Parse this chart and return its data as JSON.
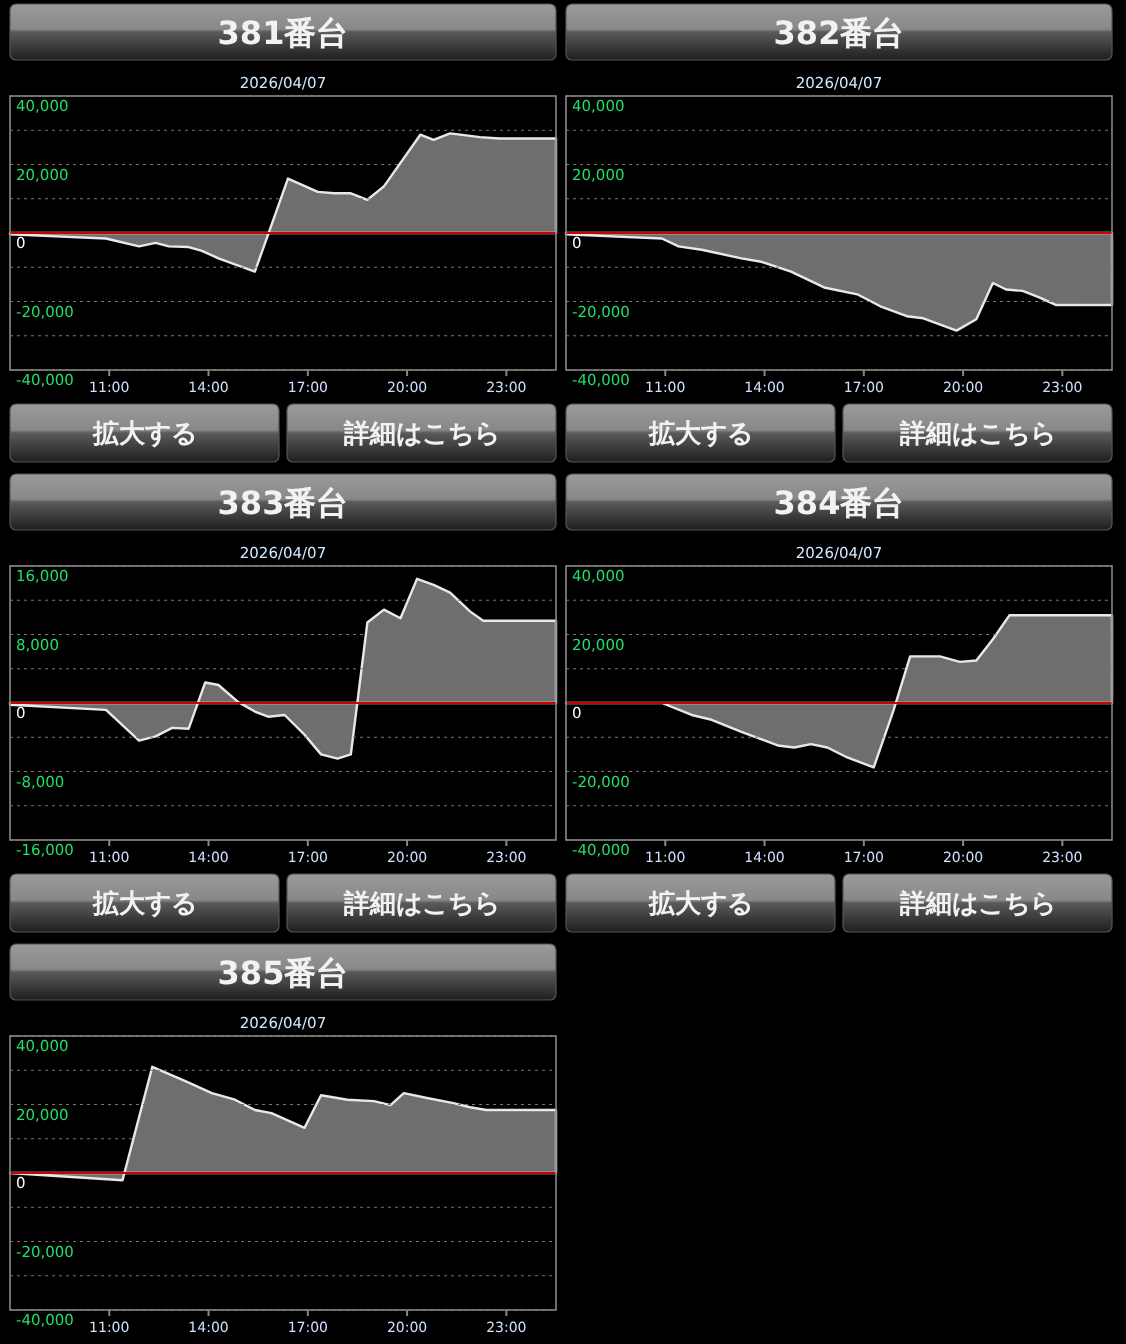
{
  "chart_data": [
    {
      "type": "area",
      "title": "381番台",
      "subtitle": "2026/04/07",
      "annotations": [
        "拡大する",
        "詳細はこちら"
      ],
      "xlim": [
        8,
        24.5
      ],
      "xticks": [
        {
          "value": 11,
          "label": "11:00"
        },
        {
          "value": 14,
          "label": "14:00"
        },
        {
          "value": 17,
          "label": "17:00"
        },
        {
          "value": 20,
          "label": "20:00"
        },
        {
          "value": 23,
          "label": "23:00"
        }
      ],
      "ylim": [
        -40000,
        40000
      ],
      "yticks": [
        {
          "value": 40000,
          "label": "40,000"
        },
        {
          "value": 30000,
          "label": null
        },
        {
          "value": 20000,
          "label": "20,000"
        },
        {
          "value": 10000,
          "label": null
        },
        {
          "value": 0,
          "label": "0"
        },
        {
          "value": -10000,
          "label": null
        },
        {
          "value": -20000,
          "label": "-20,000"
        },
        {
          "value": -30000,
          "label": null
        },
        {
          "value": -40000,
          "label": "-40,000"
        }
      ],
      "grid": "y",
      "ref_lines": [
        {
          "axis": "y",
          "value": 0,
          "color": "#cc0000"
        }
      ],
      "series": [
        {
          "color": "#6e6e6e",
          "x": [
            8.0,
            10.9,
            11.9,
            12.4,
            12.8,
            13.4,
            13.8,
            14.3,
            15.4,
            16.4,
            17.3,
            17.8,
            18.3,
            18.8,
            19.3,
            20.4,
            20.8,
            21.3,
            22.2,
            22.8,
            24.5
          ],
          "values": [
            -400,
            -1600,
            -3900,
            -2900,
            -3900,
            -4100,
            -5200,
            -7400,
            -11300,
            15900,
            12000,
            11600,
            11600,
            9700,
            13600,
            28700,
            27200,
            29100,
            28000,
            27600,
            27600
          ]
        }
      ]
    },
    {
      "type": "area",
      "title": "382番台",
      "subtitle": "2026/04/07",
      "annotations": [
        "拡大する",
        "詳細はこちら"
      ],
      "xlim": [
        8,
        24.5
      ],
      "xticks": [
        {
          "value": 11,
          "label": "11:00"
        },
        {
          "value": 14,
          "label": "14:00"
        },
        {
          "value": 17,
          "label": "17:00"
        },
        {
          "value": 20,
          "label": "20:00"
        },
        {
          "value": 23,
          "label": "23:00"
        }
      ],
      "ylim": [
        -40000,
        40000
      ],
      "yticks": [
        {
          "value": 40000,
          "label": "40,000"
        },
        {
          "value": 30000,
          "label": null
        },
        {
          "value": 20000,
          "label": "20,000"
        },
        {
          "value": 10000,
          "label": null
        },
        {
          "value": 0,
          "label": "0"
        },
        {
          "value": -10000,
          "label": null
        },
        {
          "value": -20000,
          "label": "-20,000"
        },
        {
          "value": -30000,
          "label": null
        },
        {
          "value": -40000,
          "label": "-40,000"
        }
      ],
      "grid": "y",
      "ref_lines": [
        {
          "axis": "y",
          "value": 0,
          "color": "#cc0000"
        }
      ],
      "series": [
        {
          "color": "#6e6e6e",
          "x": [
            8.0,
            10.9,
            11.4,
            12.1,
            13.3,
            13.9,
            14.8,
            15.8,
            16.8,
            17.5,
            18.3,
            18.8,
            19.8,
            20.4,
            20.9,
            21.3,
            21.8,
            22.3,
            22.8,
            24.5
          ],
          "values": [
            -400,
            -1600,
            -3900,
            -4900,
            -7400,
            -8400,
            -11300,
            -15900,
            -17900,
            -21400,
            -24300,
            -24900,
            -28500,
            -25200,
            -14600,
            -16500,
            -16900,
            -18800,
            -21000,
            -21000
          ]
        }
      ]
    },
    {
      "type": "area",
      "title": "383番台",
      "subtitle": "2026/04/07",
      "annotations": [
        "拡大する",
        "詳細はこちら"
      ],
      "xlim": [
        8,
        24.5
      ],
      "xticks": [
        {
          "value": 11,
          "label": "11:00"
        },
        {
          "value": 14,
          "label": "14:00"
        },
        {
          "value": 17,
          "label": "17:00"
        },
        {
          "value": 20,
          "label": "20:00"
        },
        {
          "value": 23,
          "label": "23:00"
        }
      ],
      "ylim": [
        -16000,
        16000
      ],
      "yticks": [
        {
          "value": 16000,
          "label": "16,000"
        },
        {
          "value": 12000,
          "label": null
        },
        {
          "value": 8000,
          "label": "8,000"
        },
        {
          "value": 4000,
          "label": null
        },
        {
          "value": 0,
          "label": "0"
        },
        {
          "value": -4000,
          "label": null
        },
        {
          "value": -8000,
          "label": "-8,000"
        },
        {
          "value": -12000,
          "label": null
        },
        {
          "value": -16000,
          "label": "-16,000"
        }
      ],
      "grid": "y",
      "ref_lines": [
        {
          "axis": "y",
          "value": 0,
          "color": "#cc0000"
        }
      ],
      "series": [
        {
          "color": "#6e6e6e",
          "x": [
            8.0,
            10.9,
            11.9,
            12.4,
            12.9,
            13.4,
            13.9,
            14.3,
            14.9,
            15.4,
            15.8,
            16.3,
            16.9,
            17.4,
            17.9,
            18.3,
            18.8,
            19.3,
            19.8,
            20.3,
            20.8,
            21.3,
            21.9,
            22.3,
            24.5
          ],
          "values": [
            -200,
            -800,
            -4400,
            -3900,
            -2900,
            -3000,
            2400,
            2100,
            100,
            -1000,
            -1600,
            -1400,
            -3700,
            -6000,
            -6500,
            -6000,
            9400,
            10900,
            9900,
            14500,
            13800,
            12900,
            10700,
            9600,
            9600
          ]
        }
      ]
    },
    {
      "type": "area",
      "title": "384番台",
      "subtitle": "2026/04/07",
      "annotations": [
        "拡大する",
        "詳細はこちら"
      ],
      "xlim": [
        8,
        24.5
      ],
      "xticks": [
        {
          "value": 11,
          "label": "11:00"
        },
        {
          "value": 14,
          "label": "14:00"
        },
        {
          "value": 17,
          "label": "17:00"
        },
        {
          "value": 20,
          "label": "20:00"
        },
        {
          "value": 23,
          "label": "23:00"
        }
      ],
      "ylim": [
        -40000,
        40000
      ],
      "yticks": [
        {
          "value": 40000,
          "label": "40,000"
        },
        {
          "value": 30000,
          "label": null
        },
        {
          "value": 20000,
          "label": "20,000"
        },
        {
          "value": 10000,
          "label": null
        },
        {
          "value": 0,
          "label": "0"
        },
        {
          "value": -10000,
          "label": null
        },
        {
          "value": -20000,
          "label": "-20,000"
        },
        {
          "value": -30000,
          "label": null
        },
        {
          "value": -40000,
          "label": "-40,000"
        }
      ],
      "grid": "y",
      "ref_lines": [
        {
          "axis": "y",
          "value": 0,
          "color": "#cc0000"
        }
      ],
      "series": [
        {
          "color": "#6e6e6e",
          "x": [
            8.0,
            10.9,
            11.8,
            12.4,
            13.3,
            14.4,
            14.9,
            15.4,
            15.9,
            16.5,
            17.3,
            17.9,
            18.4,
            19.3,
            19.9,
            20.4,
            20.9,
            21.4,
            24.5
          ],
          "values": [
            0,
            0,
            -3500,
            -4900,
            -8400,
            -12400,
            -13000,
            -12000,
            -13000,
            -15900,
            -18800,
            -2100,
            13600,
            13600,
            12000,
            12400,
            18600,
            25600,
            25600
          ]
        }
      ]
    },
    {
      "type": "area",
      "title": "385番台",
      "subtitle": "2026/04/07",
      "xlim": [
        8,
        24.5
      ],
      "xticks": [
        {
          "value": 11,
          "label": "11:00"
        },
        {
          "value": 14,
          "label": "14:00"
        },
        {
          "value": 17,
          "label": "17:00"
        },
        {
          "value": 20,
          "label": "20:00"
        },
        {
          "value": 23,
          "label": "23:00"
        }
      ],
      "ylim": [
        -40000,
        40000
      ],
      "yticks": [
        {
          "value": 40000,
          "label": "40,000"
        },
        {
          "value": 30000,
          "label": null
        },
        {
          "value": 20000,
          "label": "20,000"
        },
        {
          "value": 10000,
          "label": null
        },
        {
          "value": 0,
          "label": "0"
        },
        {
          "value": -10000,
          "label": null
        },
        {
          "value": -20000,
          "label": "-20,000"
        },
        {
          "value": -30000,
          "label": null
        },
        {
          "value": -40000,
          "label": "-40,000"
        }
      ],
      "grid": "y",
      "ref_lines": [
        {
          "axis": "y",
          "value": 0,
          "color": "#cc0000"
        }
      ],
      "series": [
        {
          "color": "#6e6e6e",
          "x": [
            8.0,
            11.4,
            12.3,
            13.3,
            14.1,
            14.8,
            15.4,
            15.9,
            16.9,
            17.4,
            18.2,
            19.0,
            19.5,
            19.9,
            20.6,
            21.4,
            21.9,
            22.4,
            24.5
          ],
          "values": [
            0,
            -2100,
            31000,
            26800,
            23300,
            21400,
            18400,
            17500,
            13200,
            22700,
            21400,
            21000,
            19800,
            23300,
            21900,
            20400,
            19200,
            18400,
            18400
          ]
        }
      ]
    }
  ]
}
